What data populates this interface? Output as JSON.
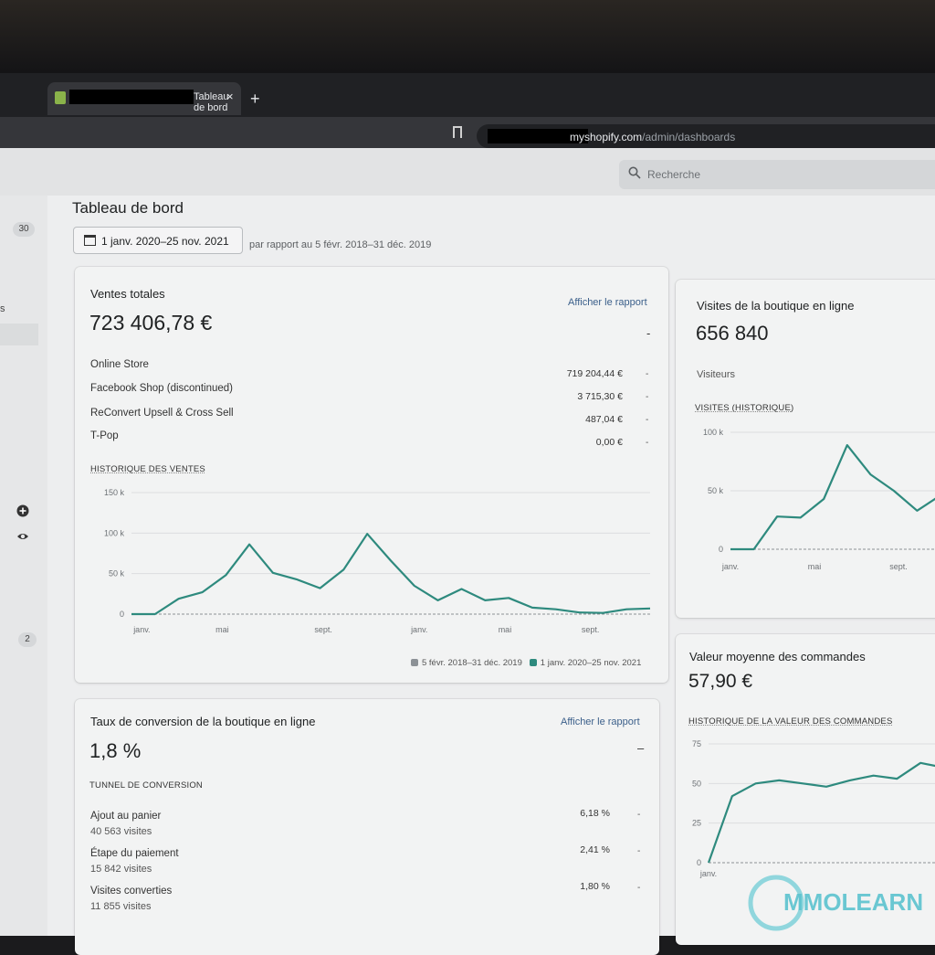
{
  "browser": {
    "tab_title": "Tableau de bord",
    "tab_close": "×",
    "new_tab": "+",
    "url_host": "myshopify.com",
    "url_path": "/admin/dashboards"
  },
  "topbar": {
    "search_placeholder": "Recherche"
  },
  "sidebar": {
    "badge_top": "30",
    "badge_bottom": "2",
    "clipped_text": "s"
  },
  "header": {
    "title": "Tableau de bord",
    "date_range": "1 janv. 2020–25 nov. 2021",
    "comparison": "par rapport au 5 févr. 2018–31 déc. 2019"
  },
  "sales": {
    "title": "Ventes totales",
    "link": "Afficher le rapport",
    "total": "723 406,78 €",
    "change": "-",
    "channels": [
      {
        "name": "Online Store",
        "value": "719 204,44 €",
        "change": "-"
      },
      {
        "name": "Facebook Shop (discontinued)",
        "value": "3 715,30 €",
        "change": "-"
      },
      {
        "name": "ReConvert Upsell & Cross Sell",
        "value": "487,04 €",
        "change": "-"
      },
      {
        "name": "T-Pop",
        "value": "0,00 €",
        "change": "-"
      }
    ],
    "history_title": "HISTORIQUE DES VENTES",
    "legend_previous": "5 févr. 2018–31 déc. 2019",
    "legend_current": "1 janv. 2020–25 nov. 2021"
  },
  "visits": {
    "title": "Visites de la boutique en ligne",
    "total": "656 840",
    "label": "Visiteurs",
    "history_title": "VISITES (HISTORIQUE)"
  },
  "aov": {
    "title": "Valeur moyenne des commandes",
    "total": "57,90 €",
    "history_title": "HISTORIQUE DE LA VALEUR DES COMMANDES"
  },
  "conversion": {
    "title": "Taux de conversion de la boutique en ligne",
    "link": "Afficher le rapport",
    "total": "1,8 %",
    "change": "–",
    "funnel_title": "TUNNEL DE CONVERSION",
    "steps": [
      {
        "name": "Ajout au panier",
        "visits": "40 563 visites",
        "rate": "6,18 %",
        "change": "-"
      },
      {
        "name": "Étape du paiement",
        "visits": "15 842 visites",
        "rate": "2,41 %",
        "change": "-"
      },
      {
        "name": "Visites converties",
        "visits": "11 855 visites",
        "rate": "1,80 %",
        "change": "-"
      }
    ]
  },
  "watermark": "MMOLEARN",
  "colors": {
    "series": "#2e8a7e",
    "previous": "#8c9196",
    "link": "#3b5f8a"
  },
  "chart_data": [
    {
      "type": "line",
      "title": "HISTORIQUE DES VENTES",
      "yticks": [
        "150 k",
        "100 k",
        "50 k",
        "0"
      ],
      "ylim": [
        0,
        150000
      ],
      "xticks": [
        "janv.",
        "mai",
        "sept.",
        "janv.",
        "mai",
        "sept."
      ],
      "series": [
        {
          "name": "1 janv. 2020–25 nov. 2021",
          "values": [
            0,
            0,
            19000,
            27000,
            48000,
            86000,
            51000,
            43000,
            32000,
            55000,
            99000,
            66000,
            35000,
            17000,
            31000,
            17000,
            20000,
            8000,
            6000,
            2000,
            1500,
            6000,
            7000
          ]
        }
      ],
      "legend": "bottom-right",
      "grid": true
    },
    {
      "type": "line",
      "title": "VISITES (HISTORIQUE)",
      "yticks": [
        "100 k",
        "50 k",
        "0"
      ],
      "ylim": [
        0,
        100000
      ],
      "xticks": [
        "janv.",
        "mai",
        "sept."
      ],
      "series": [
        {
          "values": [
            0,
            0,
            28000,
            27000,
            43000,
            89000,
            64000,
            50000,
            33000,
            46000
          ]
        }
      ],
      "grid": true
    },
    {
      "type": "line",
      "title": "HISTORIQUE DE LA VALEUR DES COMMANDES",
      "yticks": [
        "75",
        "50",
        "25",
        "0"
      ],
      "ylim": [
        0,
        75
      ],
      "xticks": [
        "janv."
      ],
      "series": [
        {
          "values": [
            0,
            42,
            50,
            52,
            50,
            48,
            52,
            55,
            53,
            63,
            60
          ]
        }
      ],
      "grid": true
    }
  ]
}
